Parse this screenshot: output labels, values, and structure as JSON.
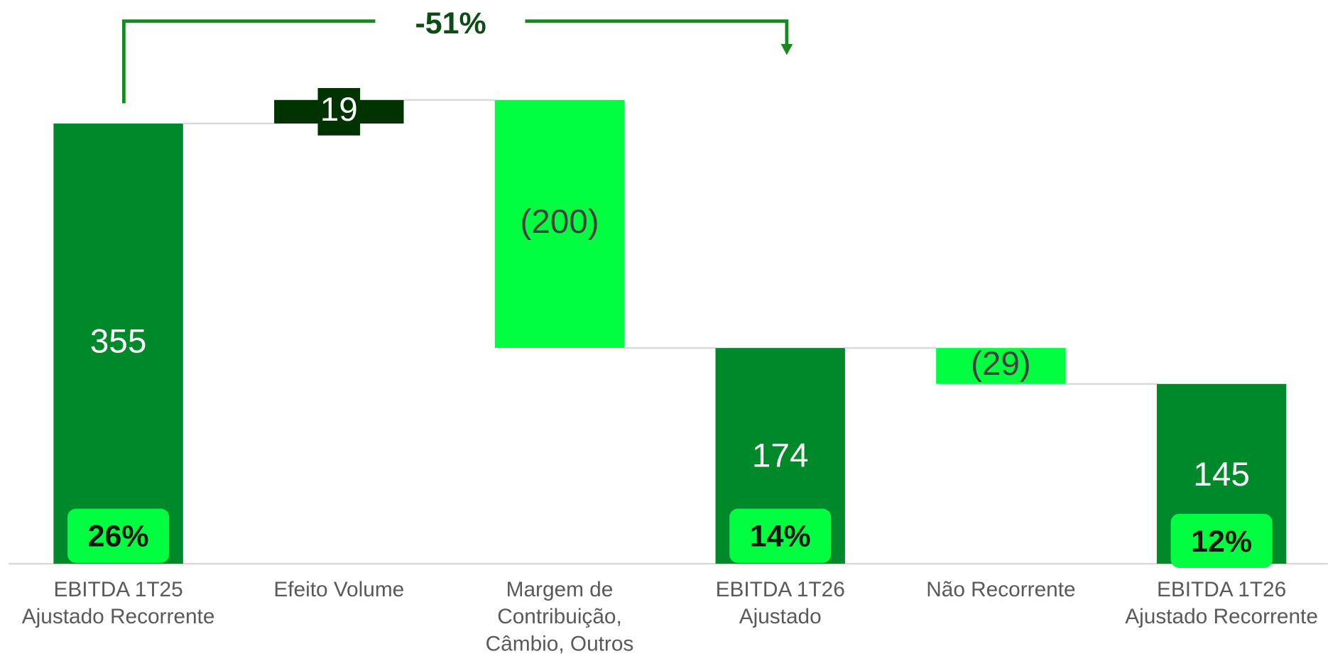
{
  "chart_data": {
    "type": "waterfall",
    "annotation": "-51%",
    "categories": [
      [
        "EBITDA 1T25",
        "Ajustado Recorrente"
      ],
      [
        "Efeito Volume"
      ],
      [
        "Margem de",
        "Contribuição,",
        "Câmbio, Outros"
      ],
      [
        "EBITDA 1T26",
        "Ajustado"
      ],
      [
        "Não Recorrente"
      ],
      [
        "EBITDA 1T26",
        "Ajustado Recorrente"
      ]
    ],
    "values": [
      355,
      19,
      -200,
      174,
      -29,
      145
    ],
    "value_labels": [
      "355",
      "19",
      "(200)",
      "174",
      "(29)",
      "145"
    ],
    "kinds": [
      "total",
      "increase",
      "decrease",
      "total",
      "decrease",
      "total"
    ],
    "colors": {
      "total": "#00892b",
      "increase": "#003300",
      "decrease": "#00ff40"
    },
    "margins": [
      26,
      null,
      null,
      14,
      null,
      12
    ],
    "margin_labels": [
      "26%",
      null,
      null,
      "14%",
      null,
      "12%"
    ],
    "ylim": [
      0,
      400
    ]
  }
}
